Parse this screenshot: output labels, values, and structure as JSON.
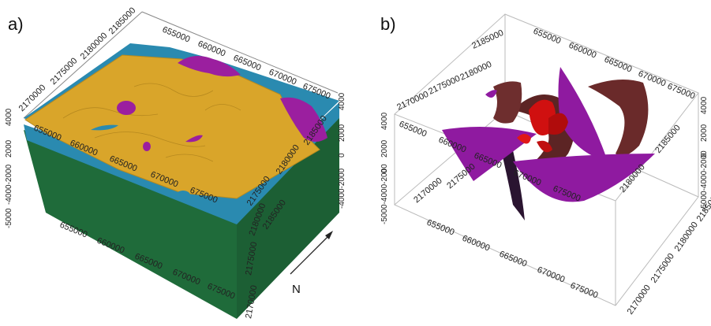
{
  "panel_a": {
    "label": "a)",
    "ticks_top_x": [
      "655000",
      "660000",
      "665000",
      "670000",
      "675000"
    ],
    "ticks_top_y": [
      "2170000",
      "2175000",
      "2180000",
      "2185000"
    ],
    "ticks_mid_x": [
      "655000",
      "660000",
      "665000",
      "670000",
      "675000"
    ],
    "ticks_mid_y": [
      "2175000",
      "2180000",
      "2185000"
    ],
    "ticks_bottom_x": [
      "655000",
      "660000",
      "665000",
      "670000",
      "675000"
    ],
    "ticks_bottom_y": [
      "2170000",
      "2175000",
      "2180000",
      "2185000"
    ],
    "ticks_z_left": [
      "4000",
      "2000",
      "-4000-2000",
      "-5000"
    ],
    "ticks_z_right": [
      "4000",
      "2000",
      "0",
      "-4000-2000"
    ],
    "north_label": "N",
    "colors": {
      "top_surface": "#d9a52a",
      "blue_layer": "#2a8ab0",
      "green_body": "#1f6b3a",
      "magenta": "#9b1f9f"
    }
  },
  "panel_b": {
    "label": "b)",
    "ticks_top_x": [
      "655000",
      "660000",
      "665000",
      "670000",
      "675000"
    ],
    "ticks_top_y": [
      "2170000",
      "2175000",
      "2180000",
      "2185000"
    ],
    "ticks_mid_x": [
      "655000",
      "660000",
      "665000",
      "670000",
      "675000"
    ],
    "ticks_mid_y": [
      "2170000",
      "2175000",
      "2180000",
      "2185000"
    ],
    "ticks_bottom_x": [
      "655000",
      "660000",
      "665000",
      "670000",
      "675000"
    ],
    "ticks_bottom_y": [
      "2170000",
      "2175000",
      "2180000",
      "2185000"
    ],
    "ticks_z_left": [
      "4000",
      "2000",
      "0",
      "-5000-4000-2000"
    ],
    "ticks_z_right": [
      "4000",
      "2000",
      "0",
      "-5000-4000-2000"
    ],
    "colors": {
      "purple": "#8f1aa0",
      "brown": "#6a2a2a",
      "red": "#d01010"
    }
  }
}
